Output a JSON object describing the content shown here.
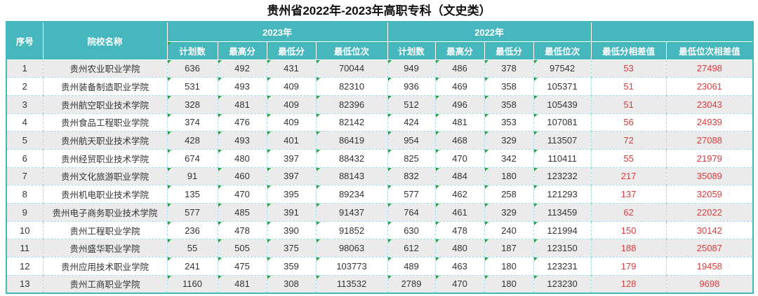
{
  "title": "贵州省2022年-2023年高职专科（文史类）",
  "header": {
    "seq": "序号",
    "school": "院校名称",
    "y2023": "2023年",
    "y2022": "2022年",
    "sub": [
      "计划数",
      "最高分",
      "最低分",
      "最低位次"
    ],
    "diff_score": "最低分相差值",
    "diff_rank": "最低位次相差值"
  },
  "colors": {
    "header_bg": "#45b7bd",
    "outer_border": "#45b7bd",
    "dash": "#a0dde2",
    "row_alt": "#ebebeb",
    "diff_text": "#dd3a3c",
    "triangle": "#27a437",
    "body_text": "#333333"
  },
  "chart_data": {
    "type": "table",
    "title": "贵州省2022年-2023年高职专科（文史类）",
    "columns": [
      "序号",
      "院校名称",
      "2023年计划数",
      "2023年最高分",
      "2023年最低分",
      "2023年最低位次",
      "2022年计划数",
      "2022年最高分",
      "2022年最低分",
      "2022年最低位次",
      "最低分相差值",
      "最低位次相差值"
    ],
    "rows": [
      [
        1,
        "贵州农业职业学院",
        636,
        492,
        431,
        70044,
        949,
        486,
        378,
        97542,
        53,
        27498
      ],
      [
        2,
        "贵州装备制造职业学院",
        531,
        493,
        409,
        82310,
        936,
        469,
        358,
        105371,
        51,
        23061
      ],
      [
        3,
        "贵州航空职业技术学院",
        328,
        481,
        409,
        82396,
        512,
        496,
        358,
        105439,
        51,
        23043
      ],
      [
        4,
        "贵州食品工程职业学院",
        374,
        476,
        409,
        82142,
        424,
        481,
        353,
        107081,
        56,
        24939
      ],
      [
        5,
        "贵州航天职业技术学院",
        428,
        493,
        401,
        86419,
        954,
        468,
        329,
        113507,
        72,
        27088
      ],
      [
        6,
        "贵州经贸职业技术学院",
        674,
        480,
        397,
        88432,
        825,
        470,
        342,
        110411,
        55,
        21979
      ],
      [
        7,
        "贵州文化旅游职业学院",
        91,
        460,
        397,
        88143,
        832,
        484,
        180,
        123232,
        217,
        35089
      ],
      [
        8,
        "贵州机电职业技术学院",
        135,
        470,
        395,
        89234,
        577,
        462,
        258,
        121293,
        137,
        32059
      ],
      [
        9,
        "贵州电子商务职业技术学院",
        577,
        485,
        391,
        91437,
        764,
        461,
        329,
        113459,
        62,
        22022
      ],
      [
        10,
        "贵州工程职业学院",
        236,
        478,
        390,
        91852,
        630,
        478,
        240,
        121994,
        150,
        30142
      ],
      [
        11,
        "贵州盛华职业学院",
        55,
        505,
        375,
        98063,
        612,
        480,
        187,
        123150,
        188,
        25087
      ],
      [
        12,
        "贵州应用技术职业学院",
        241,
        475,
        359,
        103773,
        489,
        463,
        180,
        123231,
        179,
        19458
      ],
      [
        13,
        "贵州工商职业学院",
        1160,
        481,
        308,
        113532,
        2789,
        470,
        180,
        123230,
        128,
        9698
      ]
    ]
  }
}
